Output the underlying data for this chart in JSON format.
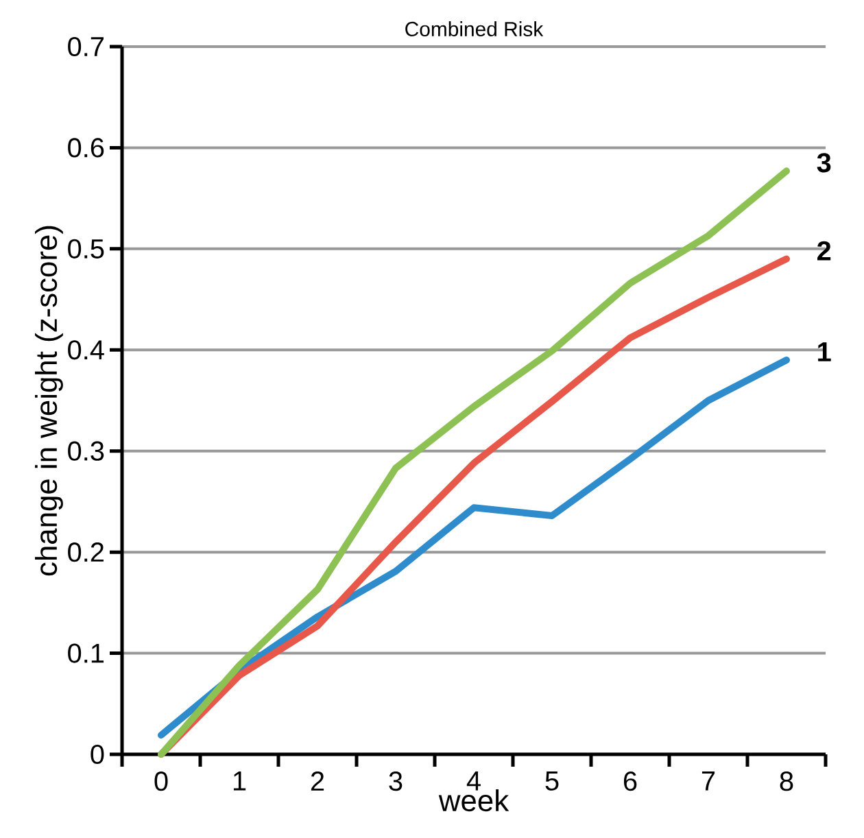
{
  "chart_data": {
    "type": "line",
    "title": "Combined Risk",
    "xlabel": "week",
    "ylabel": "change in weight (z-score)",
    "categories": [
      "0",
      "1",
      "2",
      "3",
      "4",
      "5",
      "6",
      "7",
      "8"
    ],
    "series": [
      {
        "name": "1",
        "color": "#2e8bcc",
        "values": [
          0.019,
          0.083,
          0.136,
          0.181,
          0.244,
          0.236,
          0.292,
          0.35,
          0.39
        ]
      },
      {
        "name": "2",
        "color": "#e8584a",
        "values": [
          0.0,
          0.078,
          0.127,
          0.21,
          0.288,
          0.349,
          0.412,
          0.452,
          0.49
        ]
      },
      {
        "name": "3",
        "color": "#8dc153",
        "values": [
          0.0,
          0.088,
          0.163,
          0.283,
          0.344,
          0.399,
          0.466,
          0.513,
          0.577
        ]
      }
    ],
    "ylim": [
      0,
      0.7
    ],
    "yticks": [
      0,
      0.1,
      0.2,
      0.3,
      0.4,
      0.5,
      0.6,
      0.7
    ],
    "grid": "y",
    "legend": false,
    "marker": "none",
    "line_style": "solid"
  }
}
